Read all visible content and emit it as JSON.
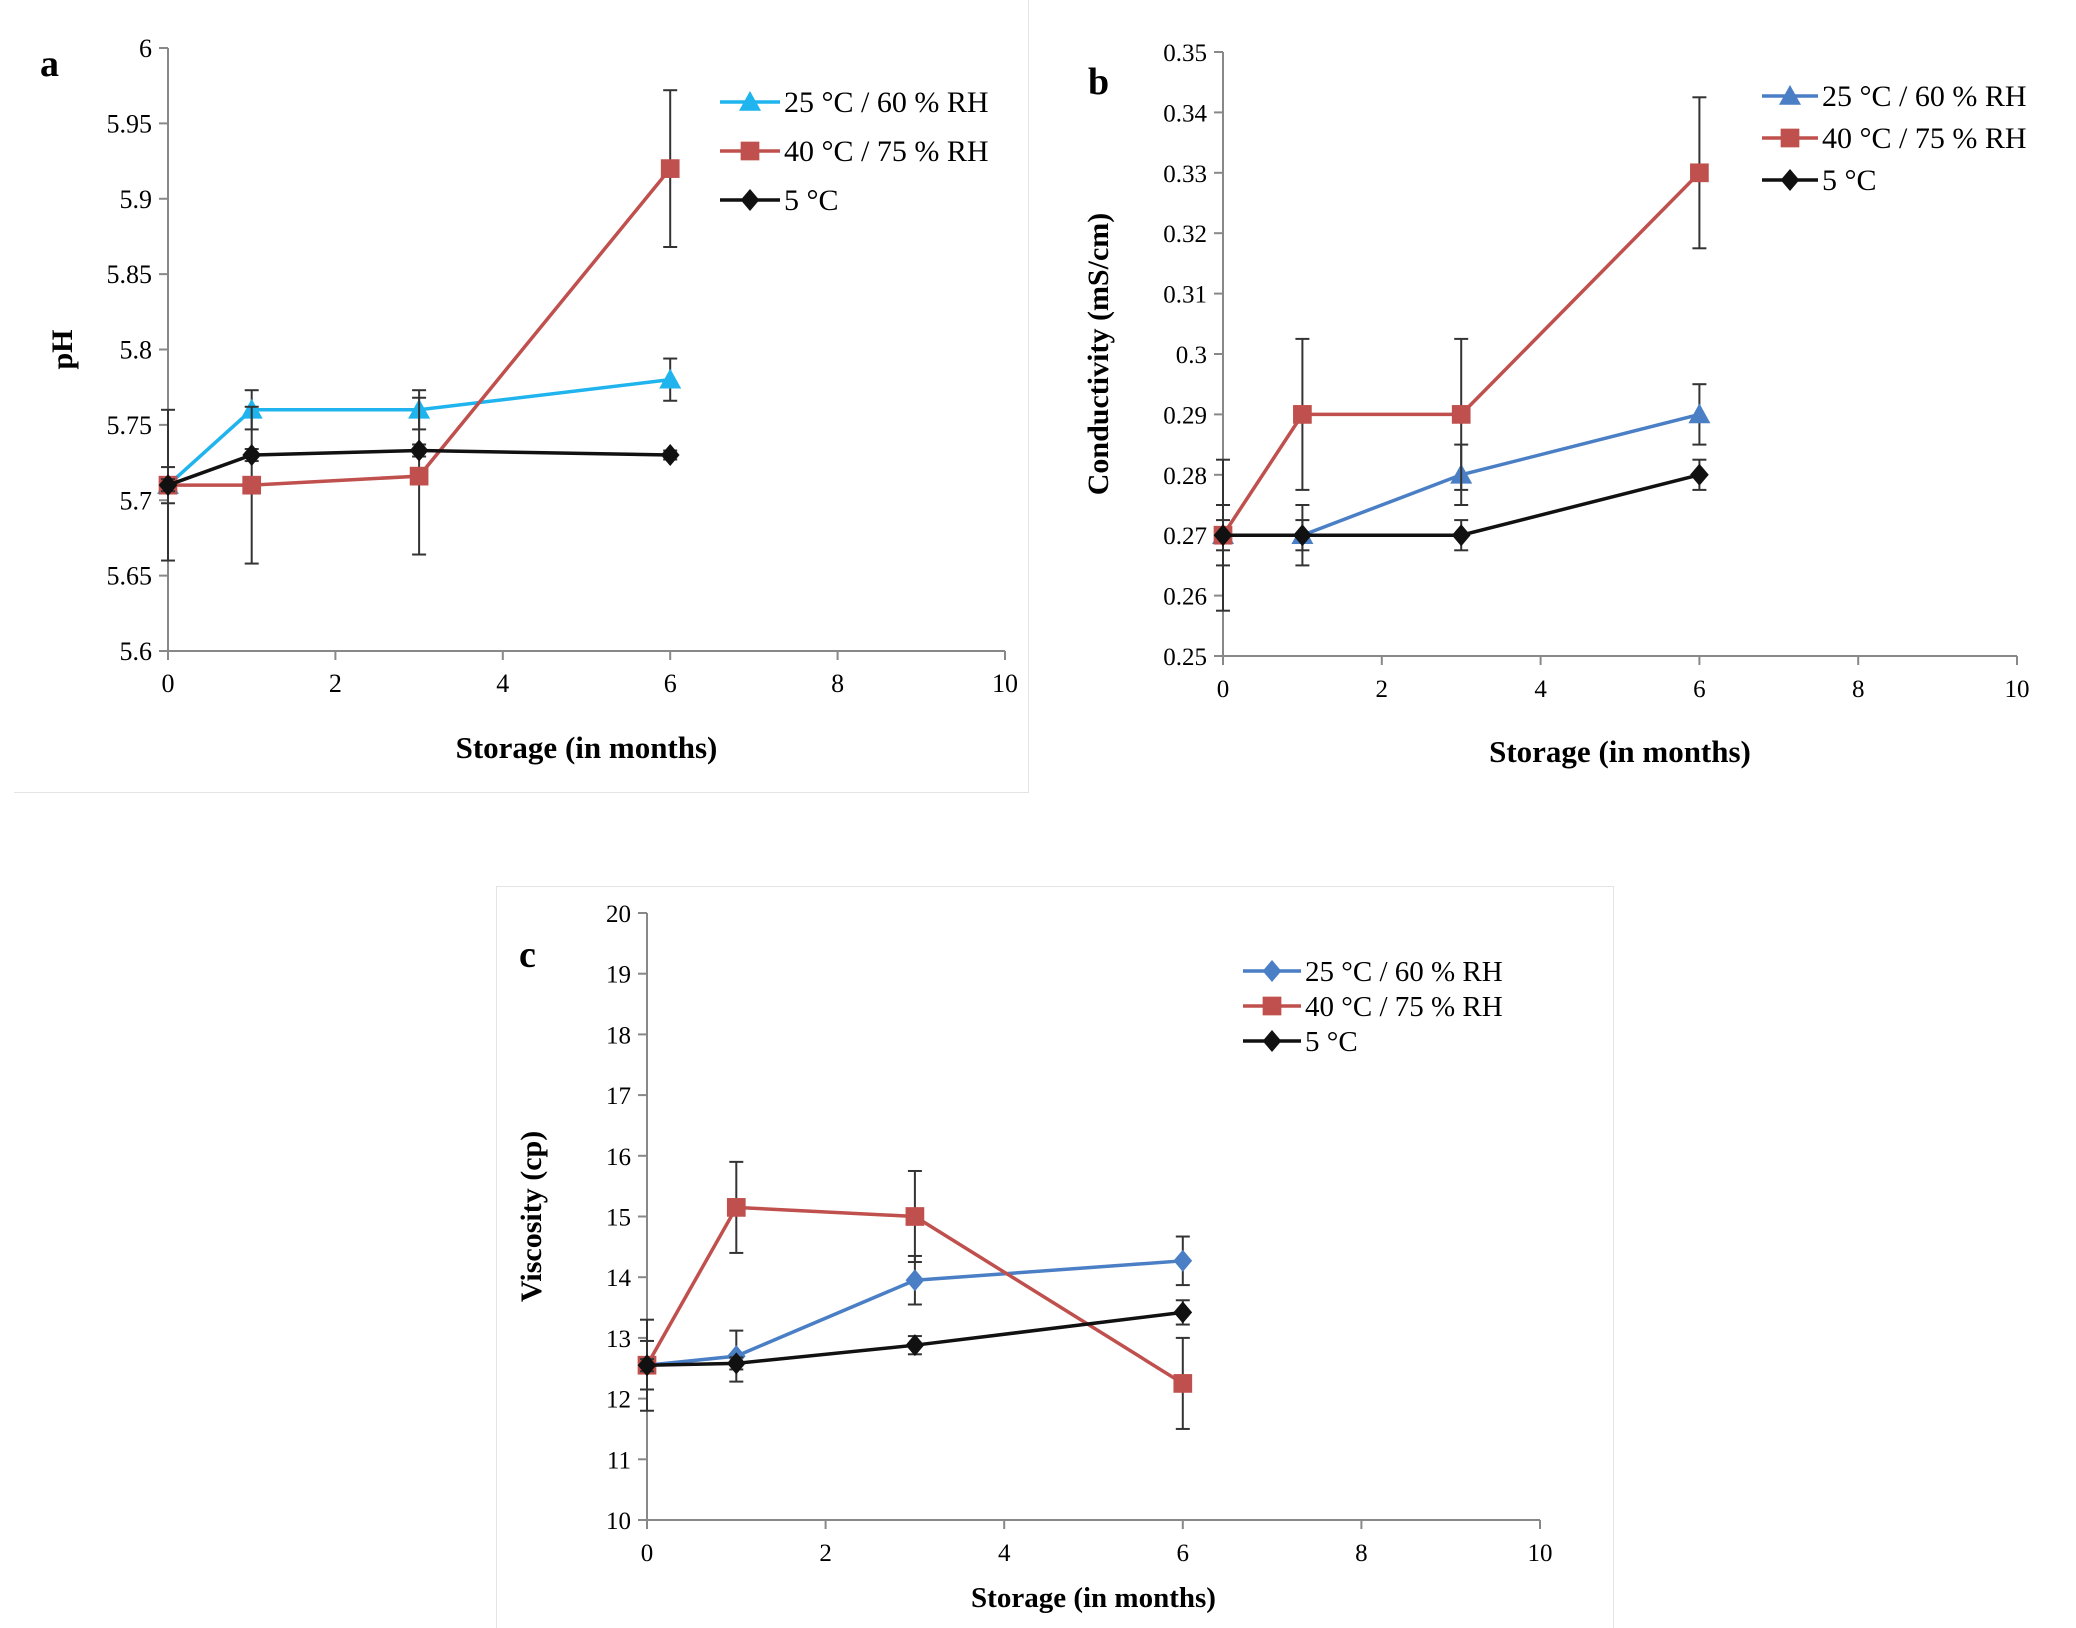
{
  "colors": {
    "a_series_1": "#1fb4ee",
    "blue_series": "#4a7fc6",
    "red_series": "#c0504d",
    "black_series": "#111111",
    "axis": "#888888",
    "error_bar": "#333333"
  },
  "chart_data": [
    {
      "panel_label": "a",
      "type": "line",
      "title": "",
      "xlabel": "Storage (in months)",
      "ylabel": "pH",
      "xlim": [
        0,
        10
      ],
      "ylim": [
        5.6,
        6
      ],
      "xticks": [
        0,
        2,
        4,
        6,
        8,
        10
      ],
      "yticks": [
        5.6,
        5.65,
        5.7,
        5.75,
        5.8,
        5.85,
        5.9,
        5.95,
        6
      ],
      "ytick_labels": [
        "5.6",
        "5.65",
        "5.7",
        "5.75",
        "5.8",
        "5.85",
        "5.9",
        "5.95",
        "6"
      ],
      "grid": false,
      "legend_position": "top-right",
      "x": [
        0,
        1,
        3,
        6
      ],
      "series": [
        {
          "name": "25 °C / 60 % RH",
          "marker": "triangle",
          "color": "#1fb4ee",
          "values": [
            5.71,
            5.76,
            5.76,
            5.78
          ],
          "errors": [
            0.012,
            0.013,
            0.013,
            0.014
          ]
        },
        {
          "name": "40 °C / 75 % RH",
          "marker": "square",
          "color": "#c0504d",
          "values": [
            5.71,
            5.71,
            5.716,
            5.92
          ],
          "errors": [
            0.05,
            0.052,
            0.052,
            0.052
          ]
        },
        {
          "name": "5 °C",
          "marker": "diamond",
          "color": "#111111",
          "values": [
            5.71,
            5.73,
            5.733,
            5.73
          ],
          "errors": [
            0.004,
            0.004,
            0.004,
            0.003
          ]
        }
      ]
    },
    {
      "panel_label": "b",
      "type": "line",
      "title": "",
      "xlabel": "Storage (in months)",
      "ylabel": "Conductivity (mS/cm)",
      "xlim": [
        0,
        10
      ],
      "ylim": [
        0.25,
        0.35
      ],
      "xticks": [
        0,
        2,
        4,
        6,
        8,
        10
      ],
      "yticks": [
        0.25,
        0.26,
        0.27,
        0.28,
        0.29,
        0.3,
        0.31,
        0.32,
        0.33,
        0.34,
        0.35
      ],
      "ytick_labels": [
        "0.25",
        "0.26",
        "0.27",
        "0.28",
        "0.29",
        "0.3",
        "0.31",
        "0.32",
        "0.33",
        "0.34",
        "0.35"
      ],
      "grid": false,
      "legend_position": "top-right",
      "x": [
        0,
        1,
        3,
        6
      ],
      "series": [
        {
          "name": "25 °C / 60 % RH",
          "marker": "triangle",
          "color": "#4a7fc6",
          "values": [
            0.27,
            0.27,
            0.28,
            0.29
          ],
          "errors": [
            0.005,
            0.005,
            0.005,
            0.005
          ]
        },
        {
          "name": "40 °C / 75 % RH",
          "marker": "square",
          "color": "#c0504d",
          "values": [
            0.27,
            0.29,
            0.29,
            0.33
          ],
          "errors": [
            0.0125,
            0.0125,
            0.0125,
            0.0125
          ]
        },
        {
          "name": "5 °C",
          "marker": "diamond",
          "color": "#111111",
          "values": [
            0.27,
            0.27,
            0.27,
            0.28
          ],
          "errors": [
            0.0025,
            0.0025,
            0.0025,
            0.0025
          ]
        }
      ]
    },
    {
      "panel_label": "c",
      "type": "line",
      "title": "",
      "xlabel": "Storage (in months)",
      "ylabel": "Viscosity (cp)",
      "xlim": [
        0,
        10
      ],
      "ylim": [
        10,
        20
      ],
      "xticks": [
        0,
        2,
        4,
        6,
        8,
        10
      ],
      "yticks": [
        10,
        11,
        12,
        13,
        14,
        15,
        16,
        17,
        18,
        19,
        20
      ],
      "ytick_labels": [
        "10",
        "11",
        "12",
        "13",
        "14",
        "15",
        "16",
        "17",
        "18",
        "19",
        "20"
      ],
      "grid": false,
      "legend_position": "top-right",
      "x": [
        0,
        1,
        3,
        6
      ],
      "series": [
        {
          "name": "25 °C / 60 % RH",
          "marker": "diamond",
          "color": "#4a7fc6",
          "values": [
            12.55,
            12.7,
            13.95,
            14.27
          ],
          "errors": [
            0.4,
            0.42,
            0.4,
            0.4
          ]
        },
        {
          "name": "40 °C / 75 % RH",
          "marker": "square",
          "color": "#c0504d",
          "values": [
            12.55,
            15.15,
            15.0,
            12.25
          ],
          "errors": [
            0.75,
            0.75,
            0.75,
            0.75
          ]
        },
        {
          "name": "5 °C",
          "marker": "diamond",
          "color": "#111111",
          "values": [
            12.55,
            12.58,
            12.88,
            13.42
          ],
          "errors": [
            0.1,
            0.1,
            0.15,
            0.2
          ]
        }
      ]
    }
  ]
}
